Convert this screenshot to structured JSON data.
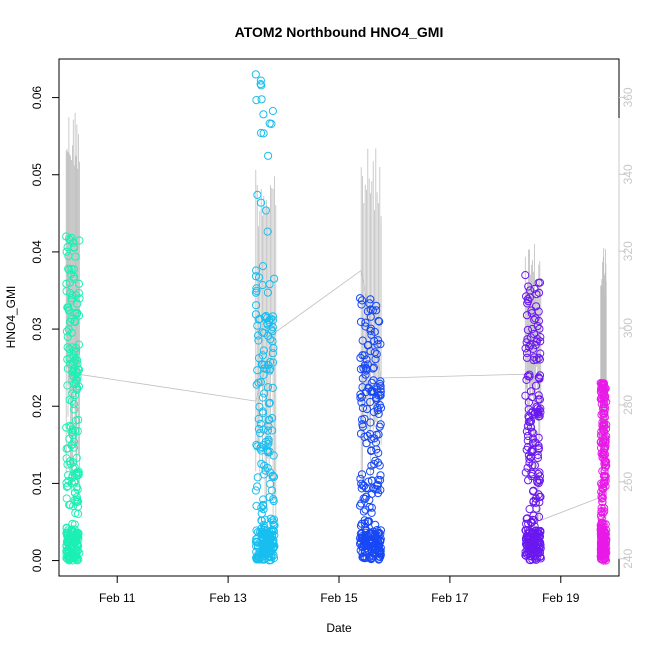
{
  "chart_data": {
    "type": "scatter",
    "title": "ATOM2 Northbound HNO4_GMI",
    "xlabel": "Date",
    "ylabel": "HNO4_GMI",
    "x_ticks": [
      "Feb 11",
      "Feb 13",
      "Feb 15",
      "Feb 17",
      "Feb 19"
    ],
    "x_tick_days": [
      11,
      13,
      15,
      17,
      19
    ],
    "xlim_days": [
      9.95,
      20.05
    ],
    "y_ticks": [
      "0.00",
      "0.01",
      "0.02",
      "0.03",
      "0.04",
      "0.05",
      "0.06"
    ],
    "y_tick_values": [
      0,
      0.01,
      0.02,
      0.03,
      0.04,
      0.05,
      0.06
    ],
    "ylim": [
      -0.002,
      0.065
    ],
    "y2_ticks": [
      "240",
      "260",
      "280",
      "300",
      "320",
      "340",
      "360"
    ],
    "y2_tick_values": [
      240,
      260,
      280,
      300,
      320,
      340,
      360
    ],
    "y2lim": [
      235.5,
      370
    ],
    "grid": false,
    "legend": "none",
    "right_axis_color": "#c8c8c8",
    "line_color": "#bebebe",
    "series": [
      {
        "color": "#1cf0b4",
        "day_start": 10.08,
        "day_end": 10.32,
        "max": 0.042,
        "dense_max": 0.035
      },
      {
        "color": "#18bef0",
        "day_start": 13.5,
        "day_end": 13.84,
        "max": 0.063,
        "dense_max": 0.038
      },
      {
        "color": "#1848f5",
        "day_start": 15.38,
        "day_end": 15.76,
        "max": 0.034,
        "dense_max": 0.028
      },
      {
        "color": "#6a18f0",
        "day_start": 18.36,
        "day_end": 18.64,
        "max": 0.037,
        "dense_max": 0.03
      },
      {
        "color": "#e81ae8",
        "day_start": 19.72,
        "day_end": 19.82,
        "max": 0.023,
        "dense_max": 0.022
      }
    ],
    "right_axis_series": {
      "transit_points": [
        {
          "day": 10.3,
          "value": 288
        },
        {
          "day": 13.5,
          "value": 281
        },
        {
          "day": 13.86,
          "value": 299
        },
        {
          "day": 15.4,
          "value": 315
        },
        {
          "day": 15.76,
          "value": 287
        },
        {
          "day": 18.36,
          "value": 288
        },
        {
          "day": 18.64,
          "value": 250
        },
        {
          "day": 19.72,
          "value": 256
        }
      ],
      "spikes": [
        {
          "day_start": 10.08,
          "day_end": 10.32,
          "peak": 358
        },
        {
          "day_start": 13.5,
          "day_end": 13.86,
          "peak": 344
        },
        {
          "day_start": 15.4,
          "day_end": 15.76,
          "peak": 347
        },
        {
          "day_start": 18.36,
          "day_end": 18.64,
          "peak": 322
        },
        {
          "day_start": 19.72,
          "day_end": 19.82,
          "peak": 323
        }
      ]
    }
  }
}
